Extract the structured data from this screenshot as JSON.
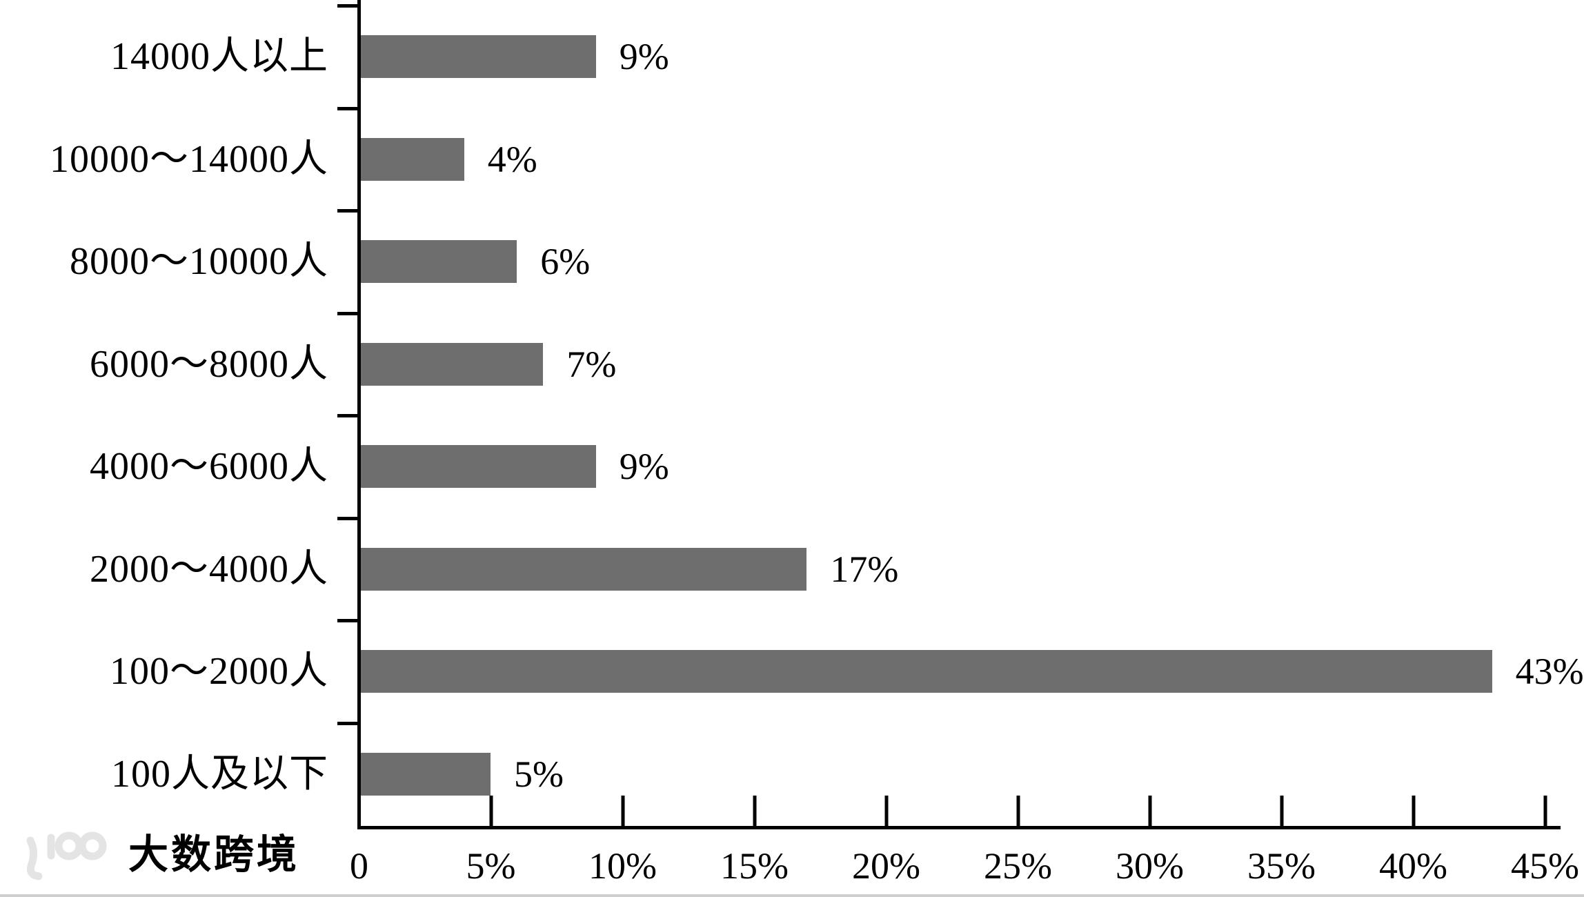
{
  "chart_data": {
    "type": "bar",
    "orientation": "horizontal",
    "categories": [
      "14000人以上",
      "10000～14000人",
      "8000～10000人",
      "6000～8000人",
      "4000～6000人",
      "2000～4000人",
      "100～2000人",
      "100人及以下"
    ],
    "values": [
      9,
      4,
      6,
      7,
      9,
      17,
      43,
      5
    ],
    "value_labels": [
      "9%",
      "4%",
      "6%",
      "7%",
      "9%",
      "17%",
      "43%",
      "5%"
    ],
    "title": "",
    "xlabel": "",
    "ylabel": "",
    "xlim": [
      0,
      45
    ],
    "x_tick_values": [
      0,
      5,
      10,
      15,
      20,
      25,
      30,
      35,
      40,
      45
    ],
    "x_tick_labels": [
      "0",
      "5%",
      "10%",
      "15%",
      "20%",
      "25%",
      "30%",
      "35%",
      "40%",
      "45%"
    ],
    "grid": false,
    "legend": "none"
  },
  "colors": {
    "bar": "#6e6e6e",
    "axis": "#000000",
    "text": "#000000",
    "watermark": "#e4e4e4",
    "bottom_strip": "#cfcfcf"
  },
  "watermark": {
    "logo": "dashu-kuajing-100-logo",
    "text": "大数跨境"
  }
}
